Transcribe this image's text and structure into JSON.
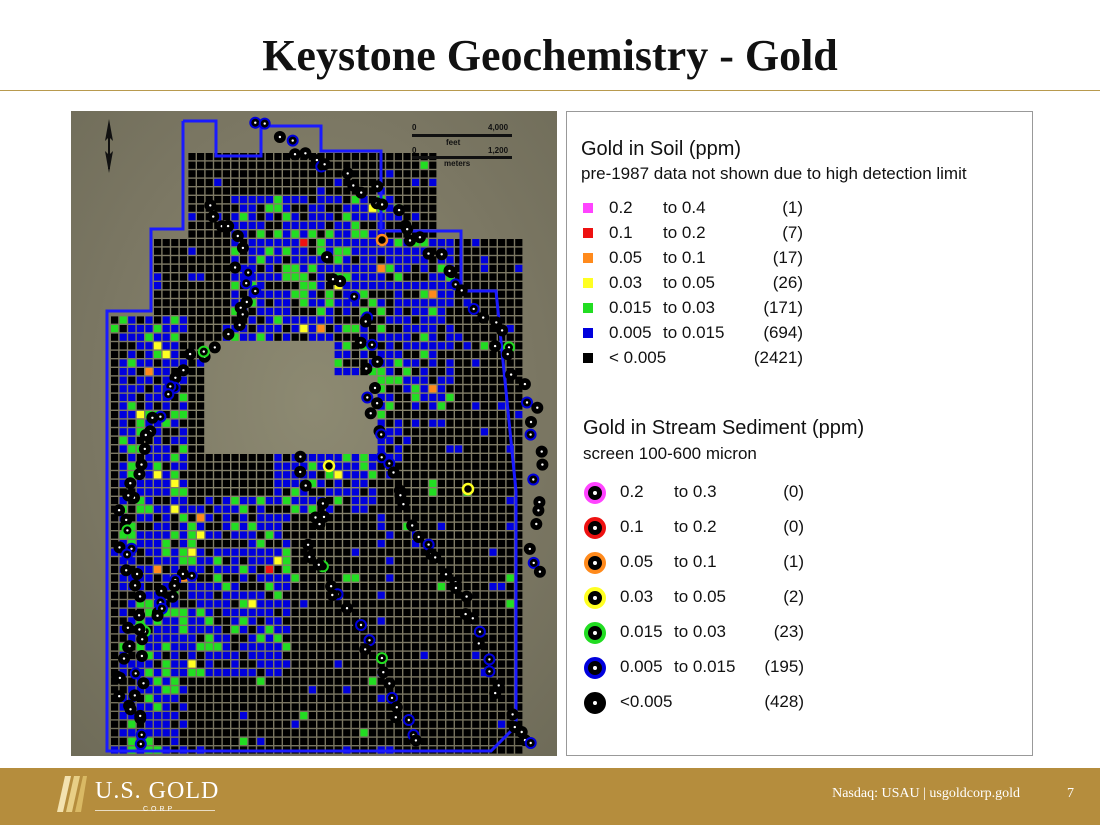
{
  "page": {
    "title": "Keystone Geochemistry - Gold",
    "page_number": "7"
  },
  "colors": {
    "gold_band": "#b58d3d",
    "magenta": "#ff44ff",
    "red": "#ee1111",
    "orange": "#ff8a1c",
    "yellow": "#ffff22",
    "green": "#22dd22",
    "blue": "#0000dd",
    "black": "#000000",
    "boundary_blue": "#1a1aff"
  },
  "map": {
    "scale": {
      "feet_label": "feet",
      "feet_zero": "0",
      "feet_max": "4,000",
      "meters_label": "meters",
      "meters_zero": "0",
      "meters_max": "1,200"
    },
    "north_icon": "north-arrow-icon"
  },
  "legend": {
    "soil": {
      "title": "Gold in Soil (ppm)",
      "subtitle": "pre-1987 data not shown due to high detection limit",
      "items": [
        {
          "low": "0.2",
          "high": "to 0.4",
          "count": "(1)",
          "color": "#ff44ff"
        },
        {
          "low": "0.1",
          "high": "to 0.2",
          "count": "(7)",
          "color": "#ee1111"
        },
        {
          "low": "0.05",
          "high": "to 0.1",
          "count": "(17)",
          "color": "#ff8a1c"
        },
        {
          "low": "0.03",
          "high": "to 0.05",
          "count": "(26)",
          "color": "#ffff22"
        },
        {
          "low": "0.015",
          "high": "to 0.03",
          "count": "(171)",
          "color": "#22dd22"
        },
        {
          "low": "0.005",
          "high": "to 0.015",
          "count": "(694)",
          "color": "#0000dd"
        },
        {
          "low": "< 0.005",
          "high": "",
          "count": "(2421)",
          "color": "#000000"
        }
      ]
    },
    "sediment": {
      "title": "Gold in Stream Sediment (ppm)",
      "subtitle": "screen 100-600 micron",
      "items": [
        {
          "low": "0.2",
          "high": "to 0.3",
          "count": "(0)",
          "color": "#ff44ff"
        },
        {
          "low": "0.1",
          "high": "to 0.2",
          "count": "(0)",
          "color": "#ee1111"
        },
        {
          "low": "0.05",
          "high": "to 0.1",
          "count": "(1)",
          "color": "#ff8a1c"
        },
        {
          "low": "0.03",
          "high": "to 0.05",
          "count": "(2)",
          "color": "#ffff22"
        },
        {
          "low": "0.015",
          "high": "to 0.03",
          "count": "(23)",
          "color": "#22dd22"
        },
        {
          "low": "0.005",
          "high": "to 0.015",
          "count": "(195)",
          "color": "#0000dd"
        },
        {
          "low": "<0.005",
          "high": "",
          "count": "(428)",
          "color": "#000000"
        }
      ]
    }
  },
  "footer": {
    "logo_name": "U.S. GOLD",
    "logo_sub": "CORP",
    "ticker": "Nasdaq: USAU  |  usgoldcorp.gold"
  }
}
